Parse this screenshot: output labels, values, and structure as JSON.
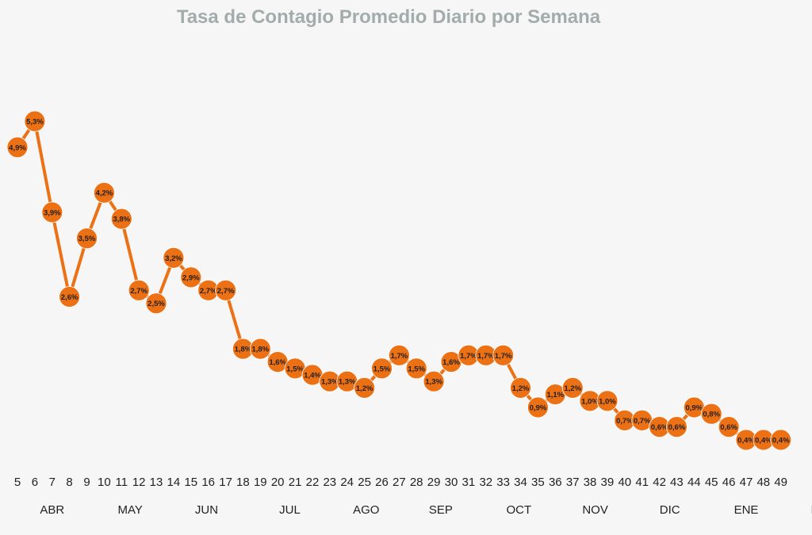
{
  "chart_data": {
    "type": "line",
    "title": "Tasa de Contagio Promedio Diario por Semana",
    "xlabel": "",
    "ylabel": "",
    "x": [
      5,
      6,
      7,
      8,
      9,
      10,
      11,
      12,
      13,
      14,
      15,
      16,
      17,
      18,
      19,
      20,
      21,
      22,
      23,
      24,
      25,
      26,
      27,
      28,
      29,
      30,
      31,
      32,
      33,
      34,
      35,
      36,
      37,
      38,
      39,
      40,
      41,
      42,
      43,
      44,
      45,
      46,
      47,
      48,
      49
    ],
    "series": [
      {
        "values": [
          4.9,
          5.3,
          3.9,
          2.6,
          3.5,
          4.2,
          3.8,
          2.7,
          2.5,
          3.2,
          2.9,
          2.7,
          2.7,
          1.8,
          1.8,
          1.6,
          1.5,
          1.4,
          1.3,
          1.3,
          1.2,
          1.5,
          1.7,
          1.5,
          1.3,
          1.6,
          1.7,
          1.7,
          1.7,
          1.2,
          0.9,
          1.1,
          1.2,
          1.0,
          1.0,
          0.7,
          0.7,
          0.6,
          0.6,
          0.9,
          0.8,
          0.6,
          0.4,
          0.4,
          0.4
        ],
        "labels": [
          "4,9%",
          "5,3%",
          "3,9%",
          "2,6%",
          "3,5%",
          "4,2%",
          "3,8%",
          "2,7%",
          "2,5%",
          "3,2%",
          "2,9%",
          "2,7%",
          "2,7%",
          "1,8%",
          "1,8%",
          "1,6%",
          "1,5%",
          "1,4%",
          "1,3%",
          "1,3%",
          "1,2%",
          "1,5%",
          "1,7%",
          "1,5%",
          "1,3%",
          "1,6%",
          "1,7%",
          "1,7%",
          "1,7%",
          "1,2%",
          "0,9%",
          "1,1%",
          "1,2%",
          "1,0%",
          "1,0%",
          "0,7%",
          "0,7%",
          "0,6%",
          "0,6%",
          "0,9%",
          "0,8%",
          "0,6%",
          "0,4%",
          "0,4%",
          "0,4%"
        ],
        "color": "#ec7014"
      }
    ],
    "months": [
      {
        "label": "ABR",
        "x": 7
      },
      {
        "label": "MAY",
        "x": 11.5
      },
      {
        "label": "JUN",
        "x": 15.9
      },
      {
        "label": "JUL",
        "x": 20.7
      },
      {
        "label": "AGO",
        "x": 25.1
      },
      {
        "label": "SEP",
        "x": 29.4
      },
      {
        "label": "OCT",
        "x": 33.9
      },
      {
        "label": "NOV",
        "x": 38.3
      },
      {
        "label": "DIC",
        "x": 42.6
      },
      {
        "label": "ENE",
        "x": 47
      },
      {
        "label": "FEB",
        "x": 51.4
      }
    ],
    "grid": false,
    "legend": "none"
  }
}
